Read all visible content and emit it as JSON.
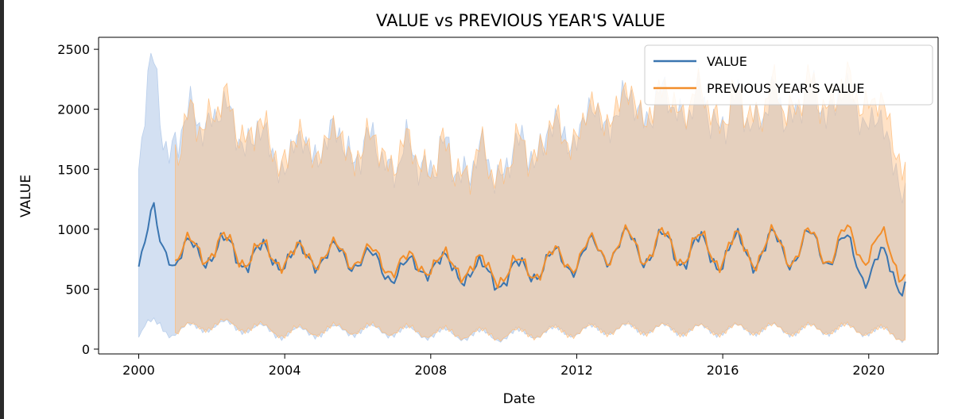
{
  "chart_data": {
    "type": "line",
    "title": "VALUE vs PREVIOUS YEAR'S VALUE",
    "xlabel": "Date",
    "ylabel": "VALUE",
    "xlim": [
      1998.9,
      2021.9
    ],
    "ylim": [
      -40,
      2600
    ],
    "xticks": [
      2000,
      2004,
      2008,
      2012,
      2016,
      2020
    ],
    "yticks": [
      0,
      500,
      1000,
      1500,
      2000,
      2500
    ],
    "grid": false,
    "legend_position": "top-right",
    "bands": "shaded min-max range around each series",
    "series": [
      {
        "name": "VALUE",
        "color": "#3a75b0",
        "band_color": "#aec7e8",
        "start": 2000.0,
        "end": 2021.0,
        "x_anchor": [
          2000.0,
          2000.2,
          2000.4,
          2000.6,
          2000.8,
          2001.0,
          2002.0,
          2003.0,
          2004.0,
          2005.0,
          2006.0,
          2007.0,
          2008.0,
          2009.0,
          2010.0,
          2011.0,
          2012.0,
          2013.0,
          2014.0,
          2015.0,
          2016.0,
          2017.0,
          2018.0,
          2019.0,
          2020.0,
          2021.0
        ],
        "mean_anchor": [
          730,
          900,
          1050,
          860,
          880,
          760,
          840,
          780,
          760,
          780,
          770,
          640,
          710,
          650,
          600,
          700,
          760,
          860,
          850,
          820,
          800,
          830,
          840,
          850,
          700,
          620
        ],
        "amplitude_anchor": [
          60,
          120,
          160,
          140,
          120,
          120,
          130,
          120,
          90,
          100,
          110,
          90,
          90,
          100,
          100,
          110,
          120,
          130,
          150,
          140,
          140,
          150,
          150,
          160,
          170,
          150
        ],
        "upper_anchor": [
          1700,
          2250,
          2400,
          2050,
          1800,
          1900,
          2100,
          1900,
          1700,
          1850,
          1800,
          1700,
          1700,
          1650,
          1650,
          1850,
          1950,
          2100,
          2150,
          2150,
          2050,
          2100,
          2150,
          2200,
          2100,
          1500
        ],
        "lower_anchor": [
          130,
          200,
          200,
          190,
          150,
          150,
          200,
          180,
          130,
          150,
          160,
          150,
          130,
          120,
          110,
          140,
          150,
          170,
          170,
          160,
          160,
          170,
          160,
          170,
          160,
          110
        ]
      },
      {
        "name": "PREVIOUS YEAR'S VALUE",
        "color": "#f28e2b",
        "band_color": "#ffbb78",
        "start": 2001.0,
        "end": 2021.0,
        "x_anchor": [
          2001.0,
          2002.0,
          2003.0,
          2004.0,
          2005.0,
          2006.0,
          2007.0,
          2008.0,
          2009.0,
          2010.0,
          2011.0,
          2012.0,
          2013.0,
          2014.0,
          2015.0,
          2016.0,
          2017.0,
          2018.0,
          2019.0,
          2020.0,
          2021.0
        ],
        "mean_anchor": [
          780,
          860,
          800,
          770,
          790,
          790,
          700,
          720,
          690,
          640,
          700,
          780,
          860,
          860,
          840,
          820,
          840,
          850,
          860,
          880,
          720
        ],
        "amplitude_anchor": [
          120,
          130,
          120,
          90,
          100,
          110,
          90,
          90,
          100,
          100,
          110,
          120,
          130,
          150,
          140,
          140,
          150,
          150,
          160,
          170,
          150
        ],
        "upper_anchor": [
          1800,
          2150,
          1950,
          1750,
          1850,
          1800,
          1750,
          1700,
          1650,
          1650,
          1850,
          1950,
          2150,
          2150,
          2200,
          2100,
          2150,
          2200,
          2250,
          2250,
          1700
        ],
        "lower_anchor": [
          150,
          210,
          190,
          140,
          160,
          170,
          160,
          140,
          130,
          120,
          140,
          150,
          170,
          170,
          160,
          160,
          170,
          160,
          170,
          160,
          110
        ]
      }
    ]
  }
}
